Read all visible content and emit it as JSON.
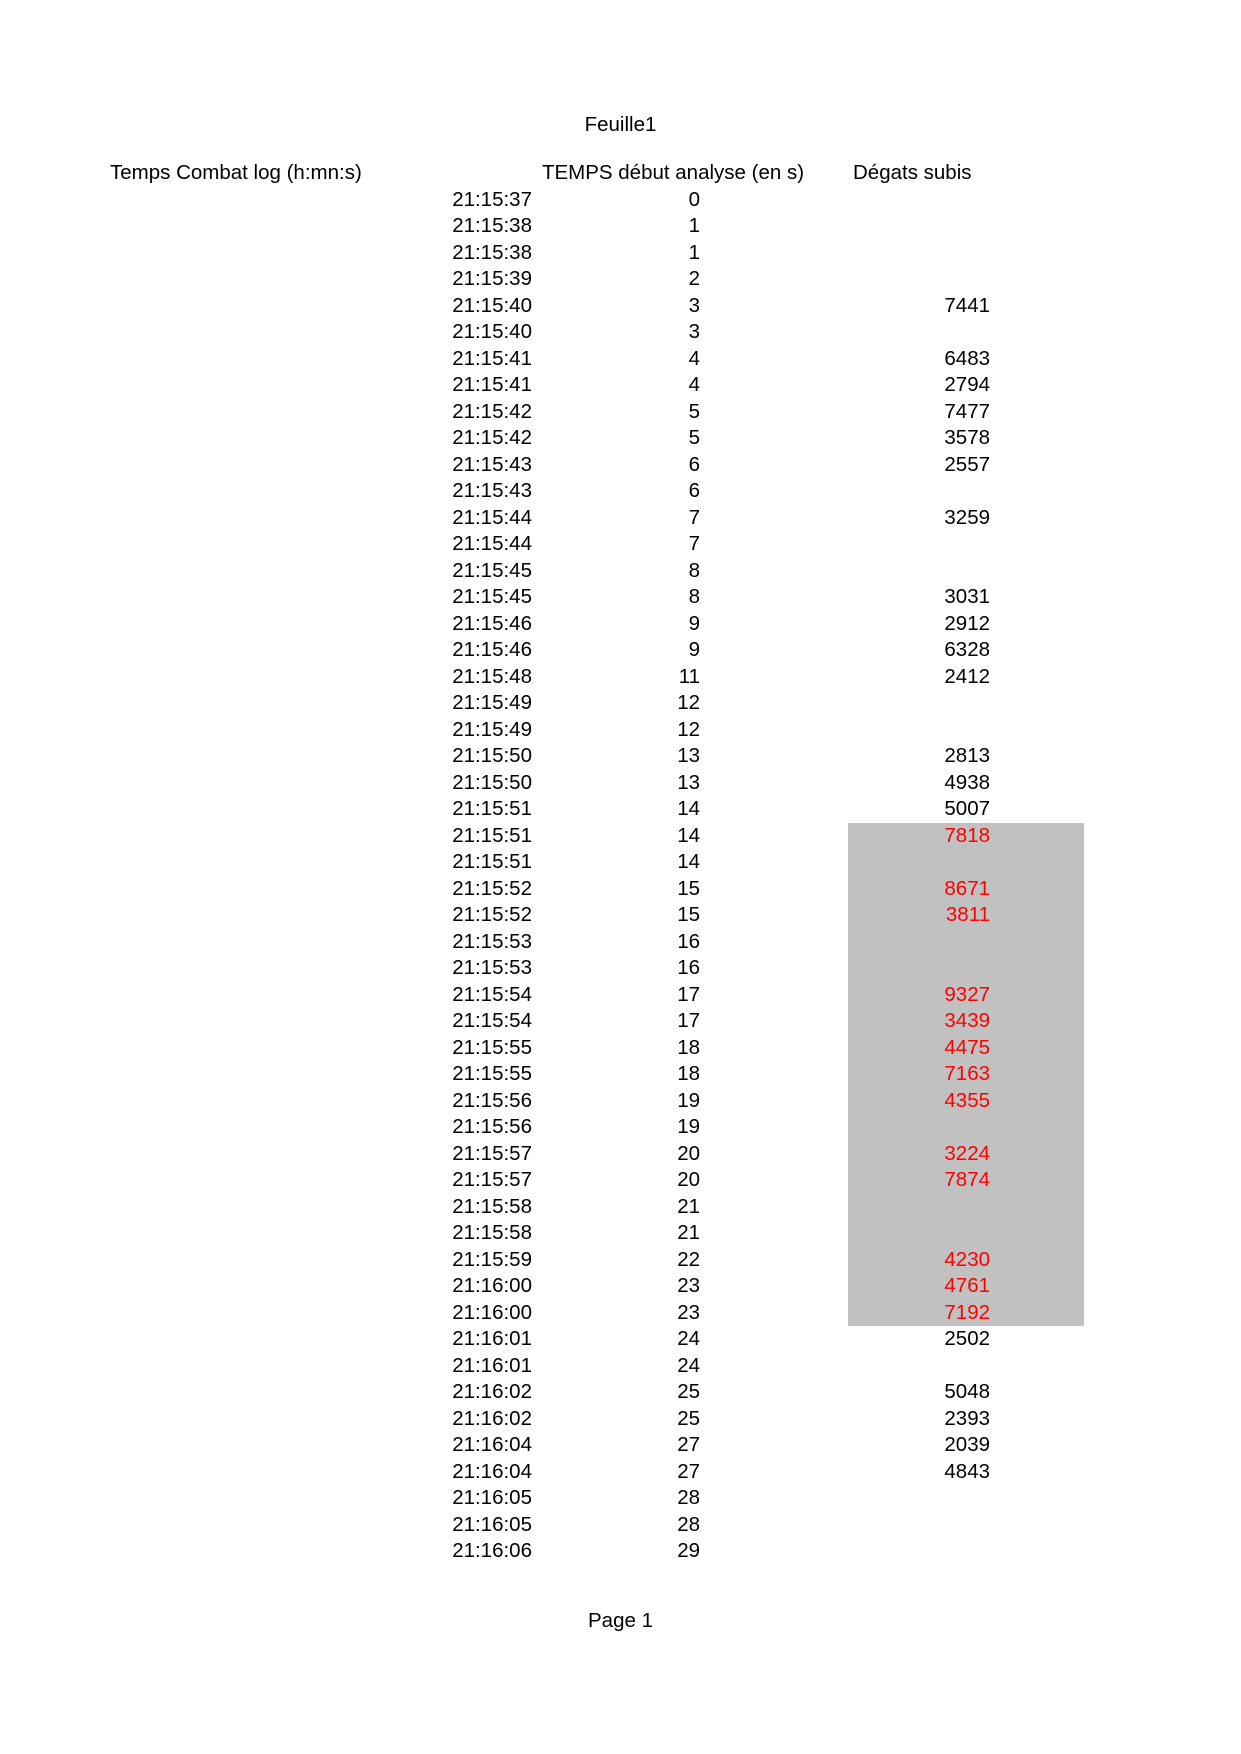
{
  "page": {
    "title": "Feuille1",
    "footer": "Page 1"
  },
  "colors": {
    "highlight_bg": "#c1c1c1",
    "alert_text": "#ff0000",
    "text": "#000000",
    "background": "#ffffff"
  },
  "table": {
    "columns": [
      "Temps Combat log (h:mn:s)",
      "TEMPS début analyse (en s)",
      "Dégats subis"
    ],
    "highlight_rows": {
      "from": 25,
      "to": 43
    },
    "rows": [
      {
        "time": "21:15:37",
        "sec": "0",
        "dmg": "",
        "red": false
      },
      {
        "time": "21:15:38",
        "sec": "1",
        "dmg": "",
        "red": false
      },
      {
        "time": "21:15:38",
        "sec": "1",
        "dmg": "",
        "red": false
      },
      {
        "time": "21:15:39",
        "sec": "2",
        "dmg": "",
        "red": false
      },
      {
        "time": "21:15:40",
        "sec": "3",
        "dmg": "7441",
        "red": false
      },
      {
        "time": "21:15:40",
        "sec": "3",
        "dmg": "",
        "red": false
      },
      {
        "time": "21:15:41",
        "sec": "4",
        "dmg": "6483",
        "red": false
      },
      {
        "time": "21:15:41",
        "sec": "4",
        "dmg": "2794",
        "red": false
      },
      {
        "time": "21:15:42",
        "sec": "5",
        "dmg": "7477",
        "red": false
      },
      {
        "time": "21:15:42",
        "sec": "5",
        "dmg": "3578",
        "red": false
      },
      {
        "time": "21:15:43",
        "sec": "6",
        "dmg": "2557",
        "red": false
      },
      {
        "time": "21:15:43",
        "sec": "6",
        "dmg": "",
        "red": false
      },
      {
        "time": "21:15:44",
        "sec": "7",
        "dmg": "3259",
        "red": false
      },
      {
        "time": "21:15:44",
        "sec": "7",
        "dmg": "",
        "red": false
      },
      {
        "time": "21:15:45",
        "sec": "8",
        "dmg": "",
        "red": false
      },
      {
        "time": "21:15:45",
        "sec": "8",
        "dmg": "3031",
        "red": false
      },
      {
        "time": "21:15:46",
        "sec": "9",
        "dmg": "2912",
        "red": false
      },
      {
        "time": "21:15:46",
        "sec": "9",
        "dmg": "6328",
        "red": false
      },
      {
        "time": "21:15:48",
        "sec": "11",
        "dmg": "2412",
        "red": false
      },
      {
        "time": "21:15:49",
        "sec": "12",
        "dmg": "",
        "red": false
      },
      {
        "time": "21:15:49",
        "sec": "12",
        "dmg": "",
        "red": false
      },
      {
        "time": "21:15:50",
        "sec": "13",
        "dmg": "2813",
        "red": false
      },
      {
        "time": "21:15:50",
        "sec": "13",
        "dmg": "4938",
        "red": false
      },
      {
        "time": "21:15:51",
        "sec": "14",
        "dmg": "5007",
        "red": false
      },
      {
        "time": "21:15:51",
        "sec": "14",
        "dmg": "7818",
        "red": true
      },
      {
        "time": "21:15:51",
        "sec": "14",
        "dmg": "",
        "red": false
      },
      {
        "time": "21:15:52",
        "sec": "15",
        "dmg": "8671",
        "red": true
      },
      {
        "time": "21:15:52",
        "sec": "15",
        "dmg": "3811",
        "red": true
      },
      {
        "time": "21:15:53",
        "sec": "16",
        "dmg": "",
        "red": false
      },
      {
        "time": "21:15:53",
        "sec": "16",
        "dmg": "",
        "red": false
      },
      {
        "time": "21:15:54",
        "sec": "17",
        "dmg": "9327",
        "red": true
      },
      {
        "time": "21:15:54",
        "sec": "17",
        "dmg": "3439",
        "red": true
      },
      {
        "time": "21:15:55",
        "sec": "18",
        "dmg": "4475",
        "red": true
      },
      {
        "time": "21:15:55",
        "sec": "18",
        "dmg": "7163",
        "red": true
      },
      {
        "time": "21:15:56",
        "sec": "19",
        "dmg": "4355",
        "red": true
      },
      {
        "time": "21:15:56",
        "sec": "19",
        "dmg": "",
        "red": false
      },
      {
        "time": "21:15:57",
        "sec": "20",
        "dmg": "3224",
        "red": true
      },
      {
        "time": "21:15:57",
        "sec": "20",
        "dmg": "7874",
        "red": true
      },
      {
        "time": "21:15:58",
        "sec": "21",
        "dmg": "",
        "red": false
      },
      {
        "time": "21:15:58",
        "sec": "21",
        "dmg": "",
        "red": false
      },
      {
        "time": "21:15:59",
        "sec": "22",
        "dmg": "4230",
        "red": true
      },
      {
        "time": "21:16:00",
        "sec": "23",
        "dmg": "4761",
        "red": true
      },
      {
        "time": "21:16:00",
        "sec": "23",
        "dmg": "7192",
        "red": true
      },
      {
        "time": "21:16:01",
        "sec": "24",
        "dmg": "2502",
        "red": false
      },
      {
        "time": "21:16:01",
        "sec": "24",
        "dmg": "",
        "red": false
      },
      {
        "time": "21:16:02",
        "sec": "25",
        "dmg": "5048",
        "red": false
      },
      {
        "time": "21:16:02",
        "sec": "25",
        "dmg": "2393",
        "red": false
      },
      {
        "time": "21:16:04",
        "sec": "27",
        "dmg": "2039",
        "red": false
      },
      {
        "time": "21:16:04",
        "sec": "27",
        "dmg": "4843",
        "red": false
      },
      {
        "time": "21:16:05",
        "sec": "28",
        "dmg": "",
        "red": false
      },
      {
        "time": "21:16:05",
        "sec": "28",
        "dmg": "",
        "red": false
      },
      {
        "time": "21:16:06",
        "sec": "29",
        "dmg": "",
        "red": false
      }
    ]
  }
}
